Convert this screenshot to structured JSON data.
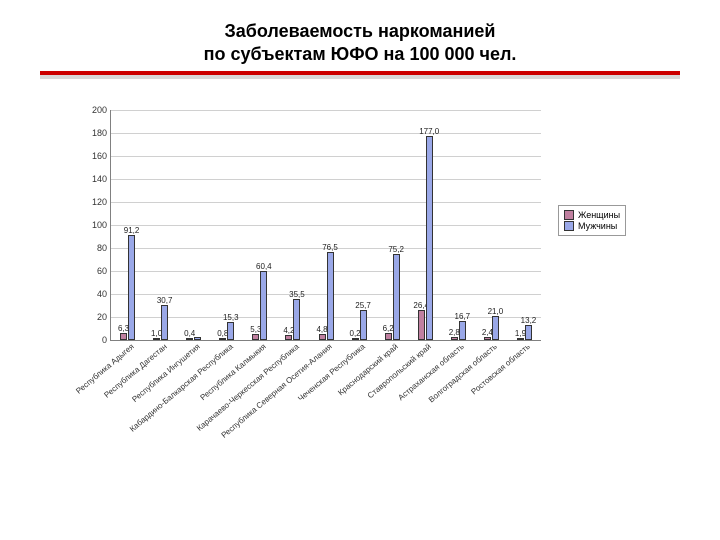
{
  "title_line1": "Заболеваемость наркоманией",
  "title_line2": "по субъектам ЮФО на 100 000 чел.",
  "title_fontsize": 18,
  "rule_color": "#cc0000",
  "chart": {
    "type": "bar",
    "ylim": [
      0,
      200
    ],
    "ytick_step": 20,
    "yticks": [
      0,
      20,
      40,
      60,
      80,
      100,
      120,
      140,
      160,
      180,
      200
    ],
    "grid_color": "#d0d0d0",
    "axis_color": "#808080",
    "background_color": "#ffffff",
    "tick_fontsize": 9,
    "label_fontsize": 8,
    "bar_border": "#333333",
    "value_label_fontsize": 8,
    "series": [
      {
        "name": "Женщины",
        "color": "#c080a0"
      },
      {
        "name": "Мужчины",
        "color": "#9aa8e8"
      }
    ],
    "categories": [
      "Республика Адыгея",
      "Республика Дагестан",
      "Республика Ингушетия",
      "Кабардино-Балкарская Республика",
      "Республика Калмыкия",
      "Карачаево-Черкесская Республика",
      "Республика Северная Осетия-Алания",
      "Чеченская Республика",
      "Краснодарский край",
      "Ставропольский край",
      "Астраханская область",
      "Волгоградская область",
      "Ростовская область"
    ],
    "values_women": [
      6.3,
      1.0,
      0.4,
      0.8,
      5.3,
      4.2,
      4.8,
      0.2,
      6.2,
      26.4,
      2.8,
      2.4,
      1.9
    ],
    "values_men": [
      91.2,
      30.7,
      3.0,
      15.3,
      60.4,
      35.5,
      76.5,
      25.7,
      75.2,
      177.0,
      16.7,
      21.0,
      13.2
    ],
    "labels_women": [
      "6,3",
      "1,0",
      "0,4",
      "0,8",
      "5,3",
      "4,2",
      "4,8",
      "0,2",
      "6,2",
      "26,4",
      "2,8",
      "2,4",
      "1,9"
    ],
    "labels_men": [
      "91,2",
      "30,7",
      "",
      "15,3",
      "60,4",
      "35,5",
      "76,5",
      "25,7",
      "75,2",
      "177,0",
      "16,7",
      "21,0",
      "13,2"
    ]
  },
  "legend": {
    "position": "right",
    "items": [
      "Женщины",
      "Мужчины"
    ]
  }
}
